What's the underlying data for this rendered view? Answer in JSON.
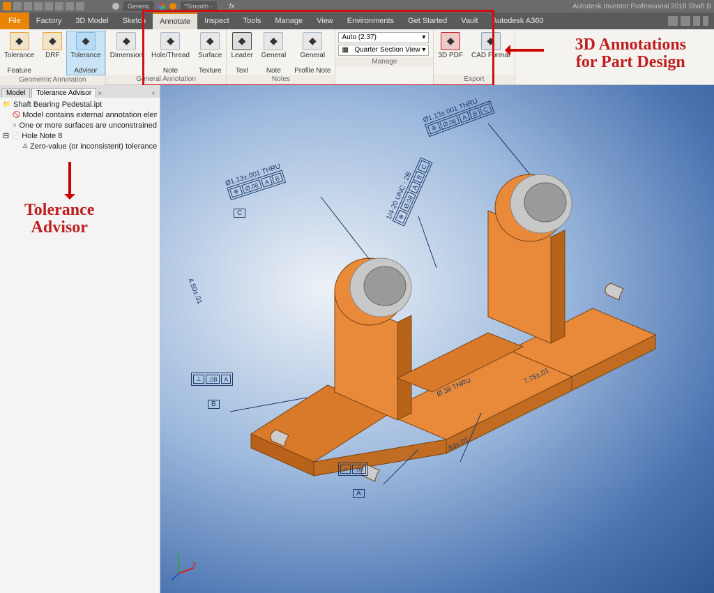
{
  "app": {
    "title_right": "Autodesk Inventor Professional 2018   Shaft B"
  },
  "qat": {
    "material_label": "Generic",
    "appearance_label": "*Smooth -",
    "fx_label": "fx"
  },
  "menu": {
    "file": "File",
    "tabs": [
      "Factory",
      "3D Model",
      "Sketch",
      "Annotate",
      "Inspect",
      "Tools",
      "Manage",
      "View",
      "Environments",
      "Get Started",
      "Vault",
      "Autodesk A360"
    ],
    "active": "Annotate"
  },
  "ribbon": {
    "groups": [
      {
        "label": "Geometric Annotation",
        "buttons": [
          {
            "name": "tolerance-feature",
            "label": "Tolerance\nFeature",
            "color": "#e8a43a"
          },
          {
            "name": "drf",
            "label": "DRF",
            "color": "#e8a43a"
          },
          {
            "name": "tolerance-advisor",
            "label": "Tolerance\nAdvisor",
            "color": "#7db8e0",
            "active": true
          }
        ]
      },
      {
        "label": "General Annotation",
        "buttons": [
          {
            "name": "dimension",
            "label": "Dimension",
            "color": "#aab7c4"
          },
          {
            "name": "hole-thread-note",
            "label": "Hole/Thread\nNote",
            "color": "#aab7c4"
          },
          {
            "name": "surface-texture",
            "label": "Surface\nTexture",
            "color": "#aab7c4"
          }
        ]
      },
      {
        "label": "Notes",
        "buttons": [
          {
            "name": "leader-text",
            "label": "Leader\nText",
            "color": "#444"
          },
          {
            "name": "general-note",
            "label": "General\nNote",
            "color": "#aab7c4"
          },
          {
            "name": "general-profile-note",
            "label": "General\nProfile Note",
            "color": "#aab7c4"
          }
        ]
      },
      {
        "label": "Manage",
        "manage": true,
        "dd1": "Auto (2.37)",
        "dd2": "Quarter Section View"
      },
      {
        "label": "Export",
        "buttons": [
          {
            "name": "3d-pdf",
            "label": "3D PDF",
            "color": "#c1272d"
          },
          {
            "name": "cad-format",
            "label": "CAD Format",
            "color": "#8aa0b4"
          }
        ]
      }
    ]
  },
  "panel": {
    "tabs": [
      "Model",
      "Tolerance Advisor"
    ],
    "file": "Shaft Bearing Pedestal.ipt",
    "lines": [
      {
        "icon": "🚫",
        "cls": "ind1",
        "text": "Model contains external annotation elements"
      },
      {
        "icon": "○",
        "cls": "ind1",
        "text": "One or more surfaces are unconstrained"
      },
      {
        "icon": "📄",
        "cls": "",
        "text": "Hole Note 8",
        "prefix": "⊟ "
      },
      {
        "icon": "⚠",
        "cls": "ind2",
        "text": "Zero-value (or inconsistent) tolerance no"
      }
    ]
  },
  "callouts": {
    "right": "3D Annotations\nfor Part Design",
    "left": "Tolerance\nAdvisor"
  },
  "annotations": {
    "hole1": "Ø1.13±.001 THRU",
    "hole2": "Ø1.13±.001 THRU",
    "thread": "1/4-20 UNC - 2B",
    "height": "4.50±.01",
    "width": "7.75±.01",
    "thick": ".63±.01",
    "slot": "Ø.38 THRU",
    "fcf1": "⊕ Ø.08 A B",
    "fcf2": "⊕ Ø.08 A B C",
    "fcf3": "⊕ Ø.08 A B C",
    "flat": "▱ .08",
    "perp": "⊥ .08 A",
    "datumA": "A",
    "datumB": "B",
    "datumC": "C"
  },
  "colors": {
    "part": "#e88a3a",
    "part_dark": "#b8621a",
    "bore": "#c8c8c8",
    "annot": "#1a3a6a",
    "callout": "#be1e1e"
  }
}
